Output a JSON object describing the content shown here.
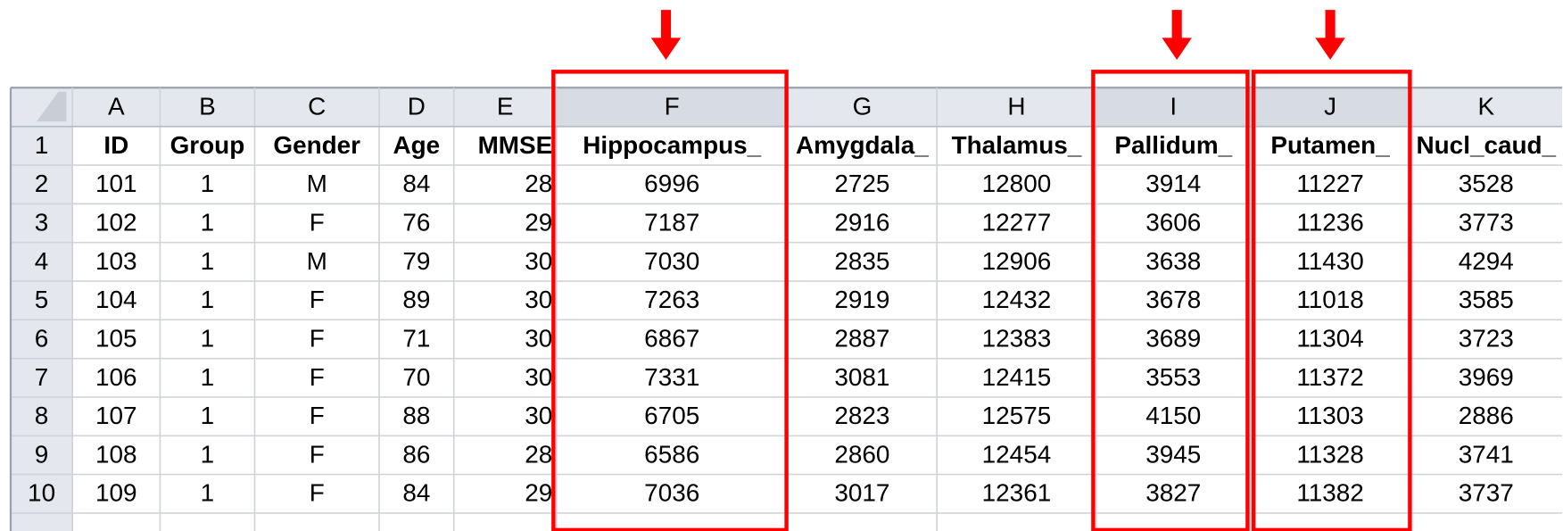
{
  "sheet": {
    "column_letters": [
      "A",
      "B",
      "C",
      "D",
      "E",
      "F",
      "G",
      "H",
      "I",
      "J",
      "K"
    ],
    "row_numbers": [
      1,
      2,
      3,
      4,
      5,
      6,
      7,
      8,
      9,
      10
    ],
    "rows": [
      [
        "ID",
        "Group",
        "Gender",
        "Age",
        "MMSE",
        "Hippocampus_",
        "Amygdala_",
        "Thalamus_",
        "Pallidum_",
        "Putamen_",
        "Nucl_caud_"
      ],
      [
        101,
        1,
        "M",
        84,
        28,
        6996,
        2725,
        12800,
        3914,
        11227,
        3528
      ],
      [
        102,
        1,
        "F",
        76,
        29,
        7187,
        2916,
        12277,
        3606,
        11236,
        3773
      ],
      [
        103,
        1,
        "M",
        79,
        30,
        7030,
        2835,
        12906,
        3638,
        11430,
        4294
      ],
      [
        104,
        1,
        "F",
        89,
        30,
        7263,
        2919,
        12432,
        3678,
        11018,
        3585
      ],
      [
        105,
        1,
        "F",
        71,
        30,
        6867,
        2887,
        12383,
        3689,
        11304,
        3723
      ],
      [
        106,
        1,
        "F",
        70,
        30,
        7331,
        3081,
        12415,
        3553,
        11372,
        3969
      ],
      [
        107,
        1,
        "F",
        88,
        30,
        6705,
        2823,
        12575,
        4150,
        11303,
        2886
      ],
      [
        108,
        1,
        "F",
        86,
        28,
        6586,
        2860,
        12454,
        3945,
        11328,
        3741
      ],
      [
        109,
        1,
        "F",
        84,
        29,
        7036,
        3017,
        12361,
        3827,
        11382,
        3737
      ]
    ]
  }
}
